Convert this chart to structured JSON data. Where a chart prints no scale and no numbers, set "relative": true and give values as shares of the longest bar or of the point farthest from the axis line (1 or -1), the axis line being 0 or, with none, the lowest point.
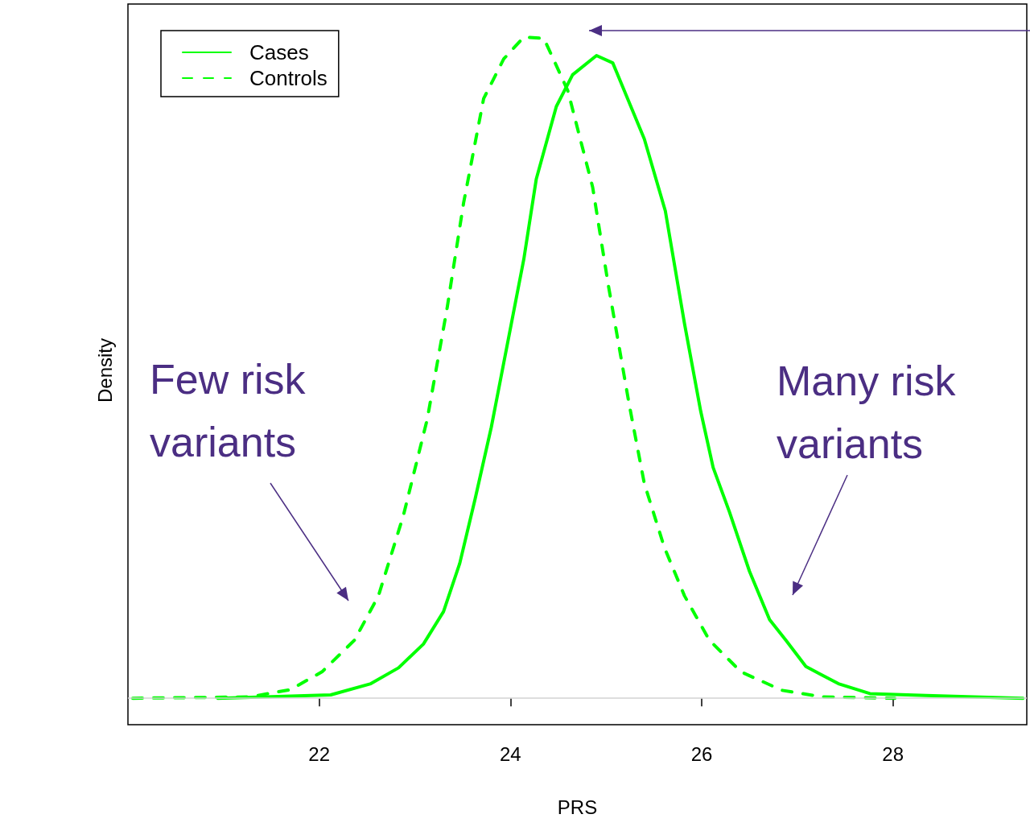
{
  "chart_data": {
    "type": "line",
    "xlabel": "PRS",
    "ylabel": "Density",
    "relative": true,
    "xlim": [
      20,
      29.4
    ],
    "xticks": [
      22,
      24,
      26,
      28
    ],
    "grid": false,
    "legend": "top left",
    "marker": "none",
    "annotations": [
      "Few risk variants",
      "Many risk variants"
    ],
    "ref_lines": [
      {
        "axis": "y",
        "value": 0,
        "color": "#d3d3d3"
      }
    ],
    "series": [
      {
        "name": "Cases",
        "color": "#00ff00",
        "line_style": "solid",
        "x": [
          20.94,
          22.12,
          22.54,
          22.83,
          23.09,
          23.3,
          23.47,
          23.63,
          23.8,
          24.01,
          24.14,
          24.27,
          24.48,
          24.65,
          24.9,
          25.07,
          25.4,
          25.62,
          25.82,
          25.99,
          26.12,
          26.29,
          26.5,
          26.71,
          26.88,
          27.09,
          27.43,
          27.76,
          28.35,
          29.36
        ],
        "values": [
          0,
          0.005,
          0.022,
          0.046,
          0.082,
          0.131,
          0.204,
          0.301,
          0.41,
          0.567,
          0.664,
          0.785,
          0.895,
          0.943,
          0.972,
          0.961,
          0.846,
          0.737,
          0.567,
          0.434,
          0.349,
          0.282,
          0.192,
          0.119,
          0.088,
          0.048,
          0.022,
          0.007,
          0.004,
          0
        ]
      },
      {
        "name": "Controls",
        "color": "#00ff00",
        "line_style": "dashed",
        "x": [
          20.05,
          21.27,
          21.7,
          22.03,
          22.37,
          22.62,
          22.88,
          23.13,
          23.34,
          23.51,
          23.72,
          23.93,
          24.14,
          24.35,
          24.6,
          24.86,
          25.02,
          25.24,
          25.4,
          25.61,
          25.82,
          26.08,
          26.41,
          26.84,
          27.26,
          28.02
        ],
        "values": [
          0,
          0.002,
          0.013,
          0.04,
          0.088,
          0.155,
          0.276,
          0.422,
          0.592,
          0.749,
          0.907,
          0.967,
          1,
          0.998,
          0.919,
          0.773,
          0.628,
          0.446,
          0.325,
          0.228,
          0.155,
          0.088,
          0.04,
          0.012,
          0.002,
          0
        ]
      }
    ]
  }
}
